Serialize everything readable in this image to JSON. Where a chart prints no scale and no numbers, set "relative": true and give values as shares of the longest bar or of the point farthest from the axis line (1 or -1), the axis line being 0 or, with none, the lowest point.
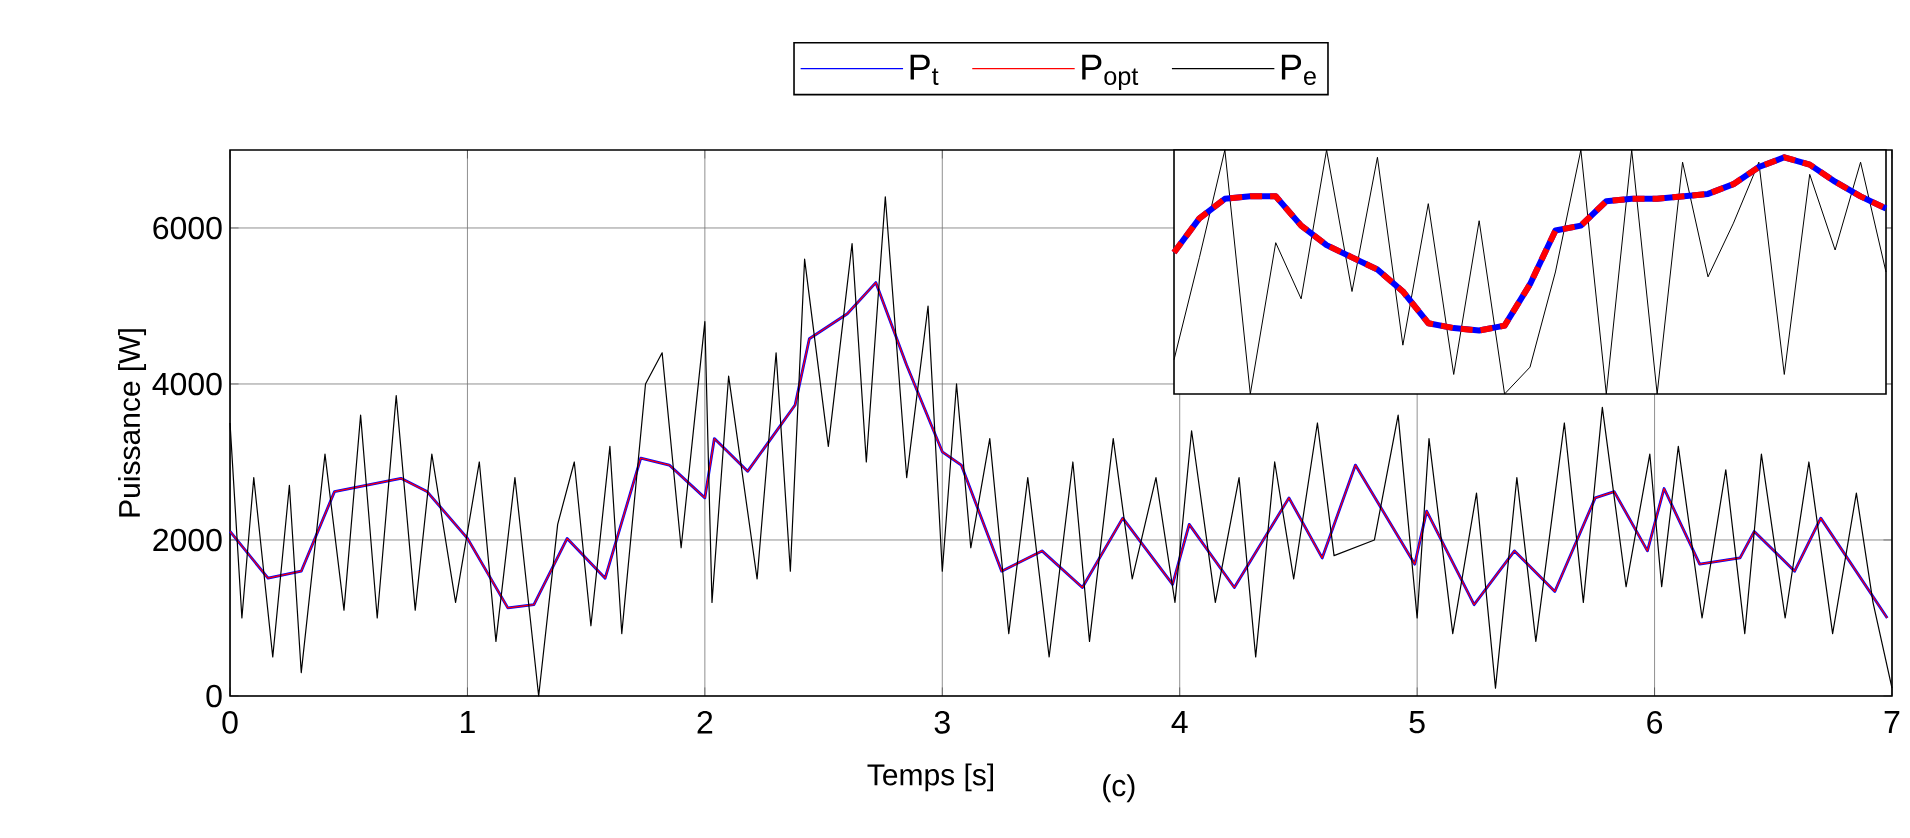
{
  "chart_data": [
    {
      "type": "line",
      "xlabel": "Temps [s]",
      "ylabel": "Puissance [W]",
      "annotations": [
        "(c)"
      ],
      "xlim": [
        0,
        7
      ],
      "ylim": [
        0,
        7000
      ],
      "xticks": [
        0,
        1,
        2,
        3,
        4,
        5,
        6,
        7
      ],
      "yticks": [
        0,
        2000,
        4000,
        6000
      ],
      "grid": true,
      "legend": "top",
      "line_style": "solid",
      "series": [
        {
          "name": "P$_{t}$",
          "color": "#0000ff",
          "x": [
            0,
            0.16,
            0.3,
            0.44,
            0.72,
            0.83,
            1.0,
            1.17,
            1.28,
            1.42,
            1.58,
            1.73,
            1.85,
            2.0,
            2.04,
            2.18,
            2.38,
            2.44,
            2.6,
            2.72,
            2.85,
            3.0,
            3.08,
            3.25,
            3.42,
            3.59,
            3.76,
            3.97,
            4.04,
            4.23,
            4.46,
            4.6,
            4.74,
            4.99,
            5.04,
            5.24,
            5.41,
            5.58,
            5.75,
            5.83,
            5.97,
            6.04,
            6.19,
            6.36,
            6.42,
            6.59,
            6.7,
            6.98
          ],
          "values": [
            2110,
            1510,
            1600,
            2620,
            2790,
            2620,
            2020,
            1130,
            1170,
            2020,
            1510,
            3050,
            2960,
            2540,
            3300,
            2880,
            3730,
            4580,
            4900,
            5300,
            4240,
            3130,
            2960,
            1600,
            1860,
            1390,
            2280,
            1430,
            2200,
            1390,
            2540,
            1770,
            2960,
            1690,
            2370,
            1170,
            1860,
            1340,
            2540,
            2620,
            1860,
            2660,
            1690,
            1770,
            2110,
            1600,
            2280,
            1000
          ]
        },
        {
          "name": "P$_{opt}$",
          "color": "#ff0000",
          "x": [
            0,
            0.16,
            0.3,
            0.44,
            0.72,
            0.83,
            1.0,
            1.17,
            1.28,
            1.42,
            1.58,
            1.73,
            1.85,
            2.0,
            2.04,
            2.18,
            2.38,
            2.44,
            2.6,
            2.72,
            2.85,
            3.0,
            3.08,
            3.25,
            3.42,
            3.59,
            3.76,
            3.97,
            4.04,
            4.23,
            4.46,
            4.6,
            4.74,
            4.99,
            5.04,
            5.24,
            5.41,
            5.58,
            5.75,
            5.83,
            5.97,
            6.04,
            6.19,
            6.36,
            6.42,
            6.59,
            6.7,
            6.98
          ],
          "values": [
            2110,
            1510,
            1600,
            2620,
            2790,
            2620,
            2020,
            1130,
            1170,
            2020,
            1510,
            3050,
            2960,
            2540,
            3300,
            2880,
            3730,
            4580,
            4900,
            5300,
            4240,
            3130,
            2960,
            1600,
            1860,
            1390,
            2280,
            1430,
            2200,
            1390,
            2540,
            1770,
            2960,
            1690,
            2370,
            1170,
            1860,
            1340,
            2540,
            2620,
            1860,
            2660,
            1690,
            1770,
            2110,
            1600,
            2280,
            1000
          ]
        },
        {
          "name": "P$_{e}$",
          "color": "#000000",
          "x": [
            0,
            0.05,
            0.1,
            0.18,
            0.25,
            0.3,
            0.4,
            0.48,
            0.55,
            0.62,
            0.7,
            0.78,
            0.85,
            0.95,
            1.05,
            1.12,
            1.2,
            1.3,
            1.38,
            1.45,
            1.52,
            1.6,
            1.65,
            1.75,
            1.82,
            1.9,
            2.0,
            2.03,
            2.1,
            2.22,
            2.3,
            2.36,
            2.42,
            2.52,
            2.62,
            2.68,
            2.76,
            2.85,
            2.94,
            3.0,
            3.06,
            3.12,
            3.2,
            3.28,
            3.36,
            3.45,
            3.55,
            3.62,
            3.72,
            3.8,
            3.9,
            3.98,
            4.05,
            4.15,
            4.25,
            4.32,
            4.4,
            4.48,
            4.58,
            4.65,
            4.72,
            4.82,
            4.92,
            5.0,
            5.05,
            5.15,
            5.25,
            5.33,
            5.42,
            5.5,
            5.62,
            5.7,
            5.78,
            5.88,
            5.98,
            6.03,
            6.1,
            6.2,
            6.3,
            6.38,
            6.45,
            6.55,
            6.65,
            6.75,
            6.85,
            6.92,
            7.0
          ],
          "values": [
            3500,
            1000,
            2800,
            500,
            2700,
            300,
            3100,
            1100,
            3600,
            1000,
            3850,
            1100,
            3100,
            1200,
            3000,
            700,
            2800,
            0,
            2200,
            3000,
            900,
            3200,
            800,
            4000,
            4400,
            1900,
            4800,
            1200,
            4100,
            1500,
            4400,
            1600,
            5600,
            3200,
            5800,
            3000,
            6400,
            2800,
            5000,
            1600,
            4000,
            1900,
            3300,
            800,
            2800,
            500,
            3000,
            700,
            3300,
            1500,
            2800,
            1200,
            3400,
            1200,
            2800,
            500,
            3000,
            1500,
            3500,
            1800,
            null,
            2000,
            3600,
            1000,
            3300,
            800,
            2600,
            100,
            2800,
            700,
            3500,
            1200,
            3700,
            1400,
            3100,
            1400,
            3200,
            1000,
            2900,
            800,
            3100,
            1000,
            3000,
            800,
            2600,
            1200,
            100
          ]
        }
      ]
    },
    {
      "type": "line",
      "relative": true,
      "categories": [
        null,
        null,
        null,
        null,
        null,
        null,
        null,
        null,
        null,
        null,
        null,
        null,
        null,
        null,
        null,
        null,
        null,
        null,
        null,
        null,
        null,
        null,
        null,
        null,
        null,
        null,
        null,
        null,
        null
      ],
      "series": [
        {
          "color": "#000000",
          "line_style": "solid",
          "values": [
            0.14,
            0.56,
            1,
            0,
            0.62,
            0.39,
            1,
            0.42,
            0.97,
            0.2,
            0.78,
            0.08,
            0.71,
            0,
            0.11,
            0.5,
            1,
            0,
            1,
            0,
            0.95,
            0.48,
            0.7,
            0.95,
            0.08,
            0.9,
            0.59,
            0.95,
            0.5
          ]
        },
        {
          "color": "#0000ff",
          "line_style": "solid",
          "values": [
            0.58,
            0.72,
            0.8,
            0.81,
            0.81,
            0.69,
            0.61,
            0.56,
            0.51,
            0.42,
            0.29,
            0.27,
            0.26,
            0.28,
            0.45,
            0.67,
            0.69,
            0.79,
            0.8,
            0.8,
            0.81,
            0.82,
            0.86,
            0.93,
            0.97,
            0.94,
            0.87,
            0.81,
            0.76
          ]
        },
        {
          "color": "#ff0000",
          "line_style": "dashed",
          "values": [
            0.58,
            0.72,
            0.8,
            0.81,
            0.81,
            0.69,
            0.61,
            0.56,
            0.51,
            0.42,
            0.29,
            0.27,
            0.26,
            0.28,
            0.45,
            0.67,
            0.69,
            0.79,
            0.8,
            0.8,
            0.81,
            0.82,
            0.86,
            0.93,
            0.97,
            0.94,
            0.87,
            0.81,
            0.76
          ]
        }
      ]
    }
  ]
}
